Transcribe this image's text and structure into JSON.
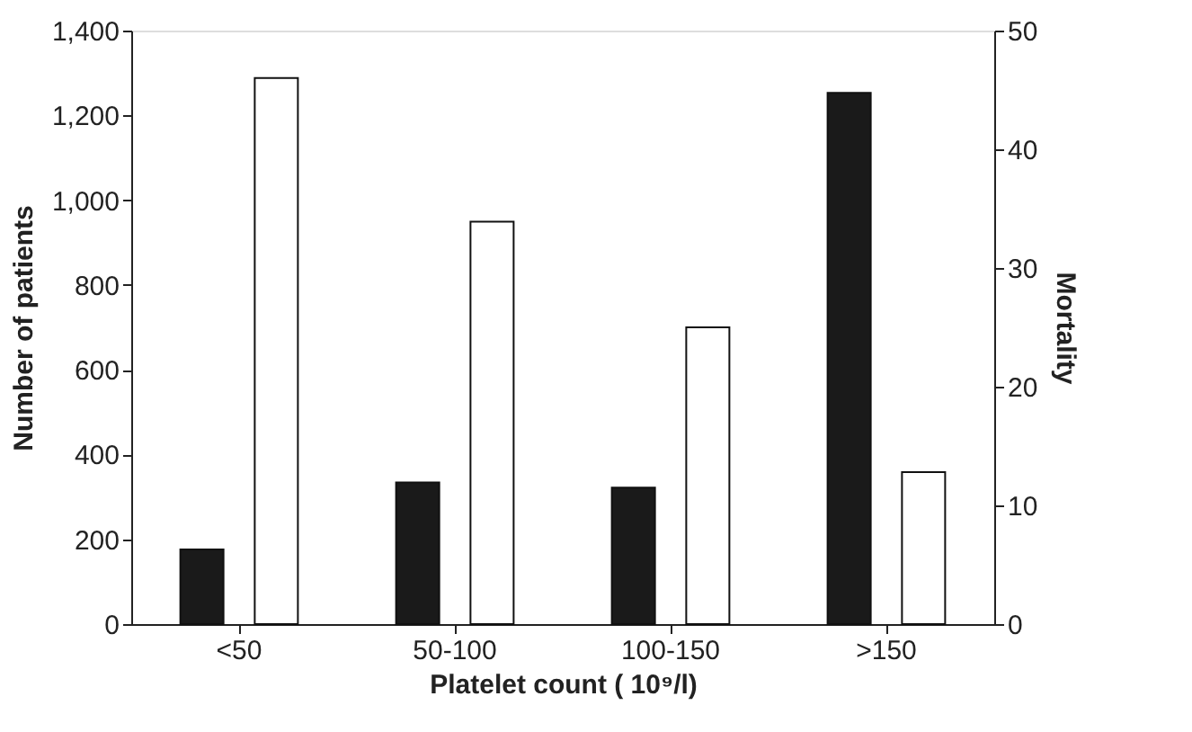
{
  "chart_data": {
    "type": "bar",
    "xlabel": "Platelet count ( 10⁹/l)",
    "ylabel": "Number of patients",
    "y2label": "Mortality",
    "categories": [
      "<50",
      "50-100",
      "100-150",
      ">150"
    ],
    "series": [
      {
        "color": "#1a1a1a",
        "values": [
          176,
          334,
          322,
          1253
        ]
      },
      {
        "color": "#ffffff",
        "values": [
          46.0,
          33.9,
          25.0,
          12.8
        ],
        "axis": "y2"
      }
    ],
    "ylim": [
      0,
      1400
    ],
    "yticks": [
      0,
      200,
      400,
      600,
      800,
      {
        "value": 1000,
        "label": "1,000"
      },
      {
        "value": 1200,
        "label": "1,200"
      },
      {
        "value": 1400,
        "label": "1,400"
      }
    ],
    "y2lim": [
      0,
      50
    ],
    "y2ticks": [
      0,
      10,
      20,
      30,
      40,
      50
    ],
    "grid": false
  }
}
